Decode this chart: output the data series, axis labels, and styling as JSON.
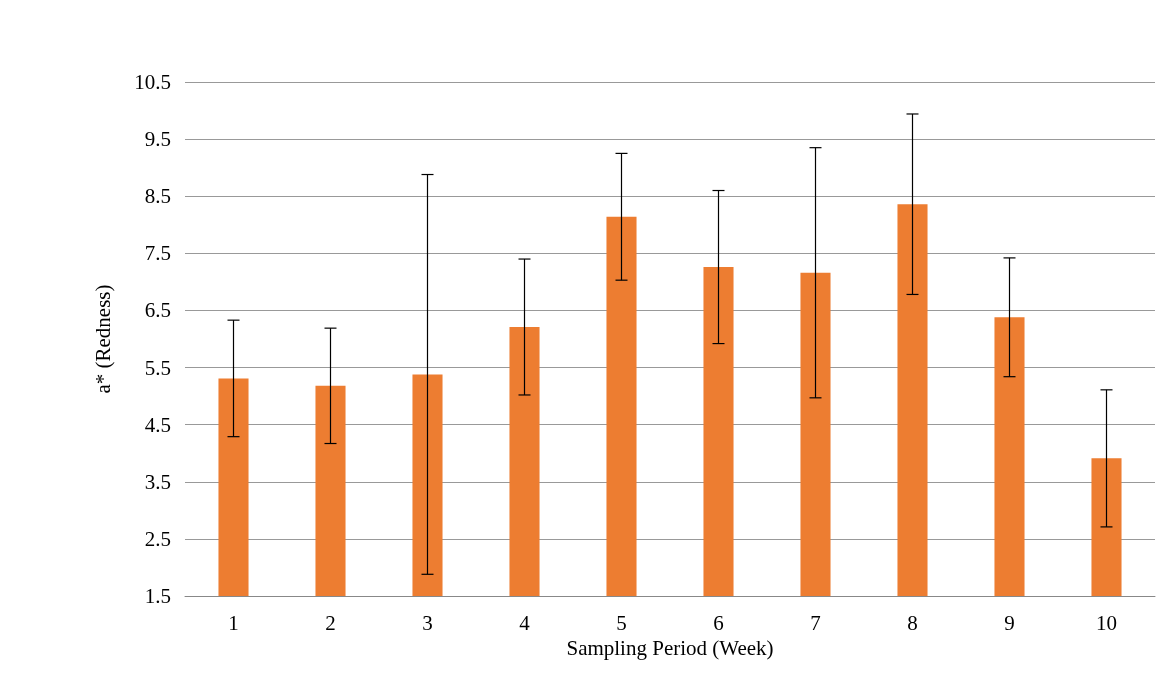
{
  "chart_data": {
    "type": "bar",
    "xlabel": "Sampling Period (Week)",
    "ylabel": "a* (Redness)",
    "categories": [
      "1",
      "2",
      "3",
      "4",
      "5",
      "6",
      "7",
      "8",
      "9",
      "10"
    ],
    "values": [
      5.31,
      5.18,
      5.38,
      6.21,
      8.14,
      7.26,
      7.16,
      8.36,
      6.38,
      3.91
    ],
    "errors": [
      1.02,
      1.01,
      3.5,
      1.19,
      1.11,
      1.34,
      2.19,
      1.58,
      1.04,
      1.2
    ],
    "color": "#ed7d31",
    "ylim": [
      1.5,
      10.5
    ],
    "yticks": [
      1.5,
      2.5,
      3.5,
      4.5,
      5.5,
      6.5,
      7.5,
      8.5,
      9.5,
      10.5
    ],
    "grid": "y"
  }
}
